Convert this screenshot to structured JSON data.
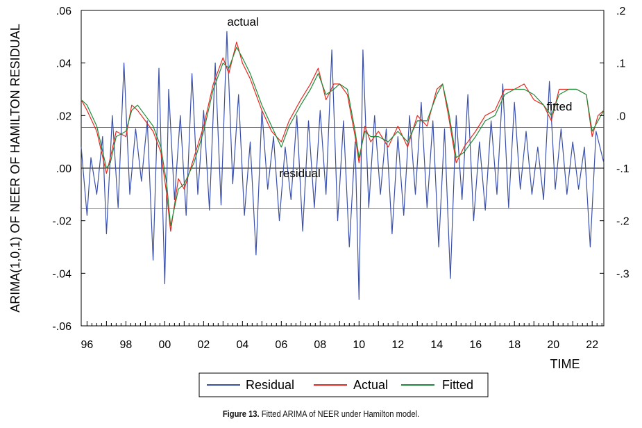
{
  "chart_data": {
    "type": "line",
    "xlabel": "TIME",
    "ylabel_left": "ARIMA(1,0,1) OF NEER OF HAMILTON RESIDUAL",
    "x_ticks": [
      "96",
      "98",
      "00",
      "02",
      "04",
      "06",
      "08",
      "10",
      "12",
      "14",
      "16",
      "18",
      "20",
      "22"
    ],
    "x_range": [
      1995.7,
      2022.6
    ],
    "left_axis": {
      "ticks": [
        ".06",
        ".04",
        ".02",
        ".00",
        "-.02",
        "-.04",
        "-.06"
      ],
      "range": [
        -0.06,
        0.06
      ]
    },
    "right_axis": {
      "ticks": [
        ".2",
        ".1",
        ".0",
        "-.1",
        "-.2",
        "-.3"
      ],
      "range": [
        -0.4,
        0.2
      ]
    },
    "residual_bands": [
      0.0155,
      -0.0155
    ],
    "annotations": {
      "actual": "actual",
      "fitted": "fitted",
      "residual": "residual"
    },
    "legend": [
      "Residual",
      "Actual",
      "Fitted"
    ],
    "colors": {
      "Residual": "#3a4fa8",
      "Actual": "#e8281e",
      "Fitted": "#1f8a3a"
    },
    "series": [
      {
        "name": "Actual",
        "axis": "right",
        "x": [
          1995.7,
          1996.0,
          1996.5,
          1997.0,
          1997.2,
          1997.5,
          1998.0,
          1998.3,
          1998.6,
          1999.0,
          1999.4,
          1999.8,
          2000.1,
          2000.3,
          2000.7,
          2001.0,
          2001.5,
          2002.0,
          2002.5,
          2003.0,
          2003.3,
          2003.7,
          2004.0,
          2004.4,
          2005.0,
          2005.5,
          2006.0,
          2006.4,
          2007.0,
          2007.5,
          2007.9,
          2008.3,
          2008.7,
          2009.0,
          2009.4,
          2009.8,
          2010.0,
          2010.3,
          2010.6,
          2011.0,
          2011.5,
          2012.0,
          2012.5,
          2013.0,
          2013.5,
          2014.0,
          2014.3,
          2014.6,
          2015.0,
          2015.4,
          2016.0,
          2016.5,
          2017.0,
          2017.5,
          2018.0,
          2018.5,
          2019.0,
          2019.5,
          2019.9,
          2020.3,
          2020.8,
          2021.2,
          2021.7,
          2022.0,
          2022.3,
          2022.6
        ],
        "values": [
          0.03,
          0.01,
          -0.03,
          -0.11,
          -0.08,
          -0.03,
          -0.04,
          0.02,
          0.01,
          -0.01,
          -0.03,
          -0.07,
          -0.15,
          -0.22,
          -0.12,
          -0.14,
          -0.08,
          -0.02,
          0.06,
          0.11,
          0.08,
          0.14,
          0.1,
          0.07,
          0.01,
          -0.03,
          -0.05,
          -0.01,
          0.03,
          0.06,
          0.09,
          0.03,
          0.06,
          0.06,
          0.04,
          -0.04,
          -0.09,
          -0.02,
          -0.05,
          -0.03,
          -0.06,
          -0.02,
          -0.06,
          0.0,
          -0.02,
          0.05,
          0.06,
          0.0,
          -0.09,
          -0.06,
          -0.03,
          0.0,
          0.01,
          0.05,
          0.05,
          0.06,
          0.03,
          0.02,
          -0.01,
          0.05,
          0.05,
          0.05,
          0.04,
          -0.04,
          0.0,
          0.01
        ]
      },
      {
        "name": "Fitted",
        "axis": "right",
        "x": [
          1995.7,
          1996.0,
          1996.5,
          1997.0,
          1997.2,
          1997.5,
          1998.0,
          1998.3,
          1998.6,
          1999.0,
          1999.4,
          1999.8,
          2000.1,
          2000.3,
          2000.7,
          2001.0,
          2001.5,
          2002.0,
          2002.5,
          2003.0,
          2003.3,
          2003.7,
          2004.0,
          2004.4,
          2005.0,
          2005.5,
          2006.0,
          2006.4,
          2007.0,
          2007.5,
          2007.9,
          2008.3,
          2008.7,
          2009.0,
          2009.4,
          2009.8,
          2010.0,
          2010.3,
          2010.6,
          2011.0,
          2011.5,
          2012.0,
          2012.5,
          2013.0,
          2013.5,
          2014.0,
          2014.3,
          2014.6,
          2015.0,
          2015.4,
          2016.0,
          2016.5,
          2017.0,
          2017.5,
          2018.0,
          2018.5,
          2019.0,
          2019.5,
          2019.9,
          2020.3,
          2020.8,
          2021.2,
          2021.7,
          2022.0,
          2022.3,
          2022.6
        ],
        "values": [
          0.03,
          0.02,
          -0.02,
          -0.1,
          -0.09,
          -0.04,
          -0.03,
          0.01,
          0.02,
          0.0,
          -0.02,
          -0.06,
          -0.13,
          -0.21,
          -0.14,
          -0.13,
          -0.09,
          -0.03,
          0.05,
          0.1,
          0.09,
          0.13,
          0.11,
          0.08,
          0.02,
          -0.02,
          -0.06,
          -0.02,
          0.02,
          0.05,
          0.08,
          0.04,
          0.05,
          0.06,
          0.05,
          -0.03,
          -0.08,
          -0.03,
          -0.04,
          -0.04,
          -0.05,
          -0.03,
          -0.05,
          -0.01,
          -0.01,
          0.04,
          0.06,
          0.01,
          -0.08,
          -0.07,
          -0.04,
          -0.01,
          0.0,
          0.04,
          0.05,
          0.05,
          0.04,
          0.02,
          0.0,
          0.04,
          0.05,
          0.05,
          0.04,
          -0.03,
          -0.01,
          0.01
        ]
      },
      {
        "name": "Residual",
        "axis": "left",
        "x": [
          1995.7,
          1996.0,
          1996.2,
          1996.5,
          1996.8,
          1997.0,
          1997.3,
          1997.6,
          1997.9,
          1998.2,
          1998.5,
          1998.8,
          1999.1,
          1999.4,
          1999.7,
          2000.0,
          2000.2,
          2000.5,
          2000.8,
          2001.1,
          2001.4,
          2001.7,
          2002.0,
          2002.3,
          2002.6,
          2002.9,
          2003.2,
          2003.5,
          2003.8,
          2004.1,
          2004.4,
          2004.7,
          2005.0,
          2005.3,
          2005.6,
          2005.9,
          2006.2,
          2006.5,
          2006.8,
          2007.1,
          2007.4,
          2007.7,
          2008.0,
          2008.3,
          2008.6,
          2008.9,
          2009.2,
          2009.5,
          2009.8,
          2010.0,
          2010.2,
          2010.5,
          2010.8,
          2011.1,
          2011.4,
          2011.7,
          2012.0,
          2012.3,
          2012.6,
          2012.9,
          2013.2,
          2013.5,
          2013.8,
          2014.1,
          2014.4,
          2014.7,
          2015.0,
          2015.3,
          2015.6,
          2015.9,
          2016.2,
          2016.5,
          2016.8,
          2017.1,
          2017.4,
          2017.7,
          2018.0,
          2018.3,
          2018.6,
          2018.9,
          2019.2,
          2019.5,
          2019.8,
          2020.1,
          2020.4,
          2020.7,
          2021.0,
          2021.3,
          2021.6,
          2021.9,
          2022.2,
          2022.6
        ],
        "values": [
          0.008,
          -0.018,
          0.004,
          -0.01,
          0.012,
          -0.025,
          0.02,
          -0.015,
          0.04,
          -0.01,
          0.015,
          -0.005,
          0.018,
          -0.035,
          0.038,
          -0.044,
          0.03,
          -0.012,
          0.02,
          -0.018,
          0.036,
          -0.01,
          0.022,
          -0.016,
          0.04,
          -0.014,
          0.052,
          -0.006,
          0.028,
          -0.018,
          0.01,
          -0.033,
          0.022,
          -0.008,
          0.012,
          -0.02,
          0.008,
          -0.012,
          0.02,
          -0.024,
          0.018,
          -0.015,
          0.022,
          -0.01,
          0.045,
          -0.02,
          0.018,
          -0.03,
          0.01,
          -0.05,
          0.045,
          -0.015,
          0.02,
          -0.01,
          0.015,
          -0.025,
          0.012,
          -0.018,
          0.02,
          -0.01,
          0.025,
          -0.015,
          0.018,
          -0.03,
          0.015,
          -0.042,
          0.02,
          -0.012,
          0.028,
          -0.02,
          0.01,
          -0.016,
          0.018,
          -0.01,
          0.032,
          -0.015,
          0.025,
          -0.008,
          0.014,
          -0.01,
          0.008,
          -0.012,
          0.033,
          -0.008,
          0.015,
          -0.01,
          0.01,
          -0.008,
          0.008,
          -0.03,
          0.014,
          0.002
        ]
      }
    ]
  },
  "caption": {
    "label": "Figure 13.",
    "text": " Fitted ARIMA of NEER under Hamilton model."
  }
}
